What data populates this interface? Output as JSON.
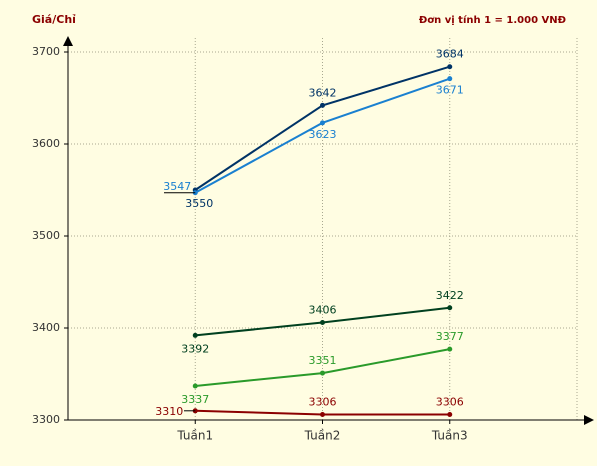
{
  "chart_data": {
    "type": "line",
    "y_label": "Giá/Chỉ",
    "unit_note": "Đơn vị tính 1 = 1.000 VNĐ",
    "categories": [
      "Tuần1",
      "Tuần2",
      "Tuần3"
    ],
    "series": [
      {
        "color": "#003366",
        "values": [
          3550,
          3642,
          3684
        ]
      },
      {
        "color": "#1a80d0",
        "values": [
          3547,
          3623,
          3671
        ]
      },
      {
        "color": "#00401f",
        "values": [
          3392,
          3406,
          3422
        ]
      },
      {
        "color": "#2a9a2a",
        "values": [
          3337,
          3351,
          3377
        ]
      },
      {
        "color": "#8b0000",
        "values": [
          3310,
          3306,
          3306
        ]
      }
    ],
    "ylim": [
      3300,
      3700
    ],
    "yticks": [
      3300,
      3400,
      3500,
      3600,
      3700
    ],
    "grid": true
  }
}
